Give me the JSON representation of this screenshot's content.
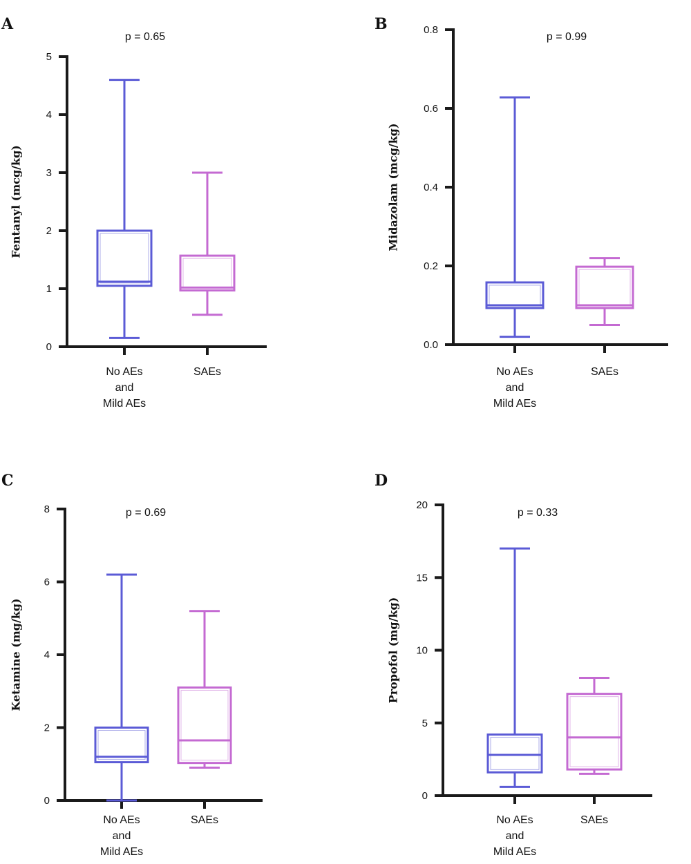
{
  "colors": {
    "group1": "#5b5bd6",
    "group2": "#c46ad2",
    "axis": "#1a1a1a"
  },
  "chart_data": [
    {
      "type": "box",
      "panel": "A",
      "pvalue": "p = 0.65",
      "ylabel": "Fentanyl (mcg/kg)",
      "ylim": [
        0,
        5
      ],
      "yticks": [
        0,
        1,
        2,
        3,
        4,
        5
      ],
      "ytick_labels": [
        "0",
        "1",
        "2",
        "3",
        "4",
        "5"
      ],
      "categories": [
        [
          "No AEs",
          "and",
          "Mild AEs"
        ],
        [
          "SAEs"
        ]
      ],
      "series": [
        {
          "min": 0.15,
          "q1": 1.05,
          "median": 1.12,
          "q3": 2.0,
          "max": 4.6
        },
        {
          "min": 0.55,
          "q1": 0.97,
          "median": 1.02,
          "q3": 1.57,
          "max": 3.0
        }
      ]
    },
    {
      "type": "box",
      "panel": "B",
      "pvalue": "p = 0.99",
      "ylabel": "Midazolam (mcg/kg)",
      "ylim": [
        0,
        0.8
      ],
      "yticks": [
        0,
        0.2,
        0.4,
        0.6,
        0.8
      ],
      "ytick_labels": [
        "0.0",
        "0.2",
        "0.4",
        "0.6",
        "0.8"
      ],
      "categories": [
        [
          "No AEs",
          "and",
          "Mild AEs"
        ],
        [
          "SAEs"
        ]
      ],
      "series": [
        {
          "min": 0.02,
          "q1": 0.093,
          "median": 0.1,
          "q3": 0.158,
          "max": 0.628
        },
        {
          "min": 0.05,
          "q1": 0.093,
          "median": 0.1,
          "q3": 0.198,
          "max": 0.22
        }
      ]
    },
    {
      "type": "box",
      "panel": "C",
      "pvalue": "p = 0.69",
      "ylabel": "Ketamine (mg/kg)",
      "ylim": [
        0,
        8
      ],
      "yticks": [
        0,
        2,
        4,
        6,
        8
      ],
      "ytick_labels": [
        "0",
        "2",
        "4",
        "6",
        "8"
      ],
      "categories": [
        [
          "No AEs",
          "and",
          "Mild AEs"
        ],
        [
          "SAEs"
        ]
      ],
      "series": [
        {
          "min": 0.0,
          "q1": 1.05,
          "median": 1.2,
          "q3": 2.0,
          "max": 6.2
        },
        {
          "min": 0.9,
          "q1": 1.03,
          "median": 1.65,
          "q3": 3.1,
          "max": 5.2
        }
      ]
    },
    {
      "type": "box",
      "panel": "D",
      "pvalue": "p = 0.33",
      "ylabel": "Propofol (mg/kg)",
      "ylim": [
        0,
        20
      ],
      "yticks": [
        0,
        5,
        10,
        15,
        20
      ],
      "ytick_labels": [
        "0",
        "5",
        "10",
        "15",
        "20"
      ],
      "categories": [
        [
          "No AEs",
          "and",
          "Mild AEs"
        ],
        [
          "SAEs"
        ]
      ],
      "series": [
        {
          "min": 0.6,
          "q1": 1.6,
          "median": 2.8,
          "q3": 4.2,
          "max": 17.0
        },
        {
          "min": 1.5,
          "q1": 1.8,
          "median": 4.0,
          "q3": 7.0,
          "max": 8.1
        }
      ]
    }
  ]
}
